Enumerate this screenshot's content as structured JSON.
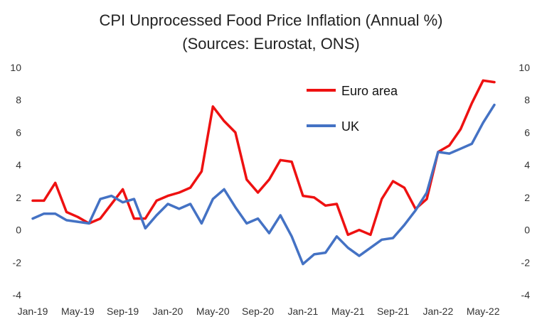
{
  "chart_data": {
    "type": "line",
    "title": "CPI Unprocessed Food Price Inflation (Annual %)",
    "subtitle": "(Sources: Eurostat, ONS)",
    "xlabel": "",
    "ylabel": "",
    "ylim": [
      -4,
      10
    ],
    "yticks": [
      "-4",
      "-2",
      "0",
      "2",
      "4",
      "6",
      "8",
      "10"
    ],
    "y2ticks": [
      "-4",
      "-2",
      "0",
      "2",
      "4",
      "6",
      "8",
      "10"
    ],
    "x": [
      "Jan-19",
      "Feb-19",
      "Mar-19",
      "Apr-19",
      "May-19",
      "Jun-19",
      "Jul-19",
      "Aug-19",
      "Sep-19",
      "Oct-19",
      "Nov-19",
      "Dec-19",
      "Jan-20",
      "Feb-20",
      "Mar-20",
      "Apr-20",
      "May-20",
      "Jun-20",
      "Jul-20",
      "Aug-20",
      "Sep-20",
      "Oct-20",
      "Nov-20",
      "Dec-20",
      "Jan-21",
      "Feb-21",
      "Mar-21",
      "Apr-21",
      "May-21",
      "Jun-21",
      "Jul-21",
      "Aug-21",
      "Sep-21",
      "Oct-21",
      "Nov-21",
      "Dec-21",
      "Jan-22",
      "Feb-22",
      "Mar-22",
      "Apr-22",
      "May-22",
      "Jun-22"
    ],
    "xticks": [
      "Jan-19",
      "May-19",
      "Sep-19",
      "Jan-20",
      "May-20",
      "Sep-20",
      "Jan-21",
      "May-21",
      "Sep-21",
      "Jan-22",
      "May-22"
    ],
    "grid": false,
    "legend_position": "top-right",
    "series": [
      {
        "name": "Euro area",
        "color": "#ee1111",
        "values": [
          1.8,
          1.8,
          2.9,
          1.1,
          0.8,
          0.4,
          0.7,
          1.6,
          2.5,
          0.7,
          0.7,
          1.8,
          2.1,
          2.3,
          2.6,
          3.6,
          7.6,
          6.7,
          6.0,
          3.1,
          2.3,
          3.1,
          4.3,
          4.2,
          2.1,
          2.0,
          1.5,
          1.6,
          -0.3,
          0.0,
          -0.3,
          1.9,
          3.0,
          2.6,
          1.3,
          1.9,
          4.8,
          5.2,
          6.2,
          7.8,
          9.2,
          9.1
        ]
      },
      {
        "name": "UK",
        "color": "#4472c4",
        "values": [
          0.7,
          1.0,
          1.0,
          0.6,
          0.5,
          0.4,
          1.9,
          2.1,
          1.7,
          1.9,
          0.1,
          0.9,
          1.6,
          1.3,
          1.6,
          0.4,
          1.9,
          2.5,
          1.4,
          0.4,
          0.7,
          -0.2,
          0.9,
          -0.4,
          -2.1,
          -1.5,
          -1.4,
          -0.4,
          -1.1,
          -1.6,
          -1.1,
          -0.6,
          -0.5,
          0.3,
          1.2,
          2.3,
          4.8,
          4.7,
          5.0,
          5.3,
          6.6,
          7.7
        ]
      }
    ]
  }
}
